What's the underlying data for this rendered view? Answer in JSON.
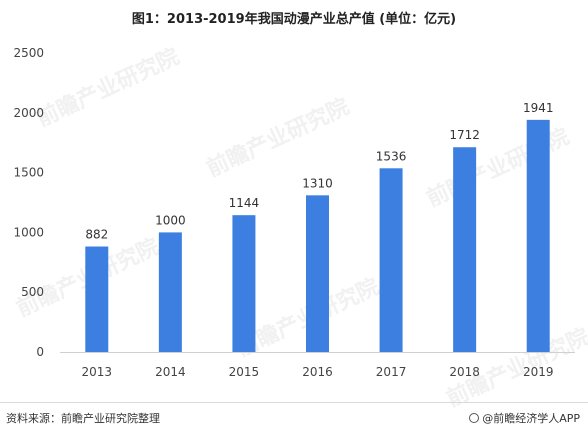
{
  "chart_data": {
    "type": "bar",
    "title": "图1：2013-2019年我国动漫产业总产值 (单位：亿元)",
    "categories": [
      "2013",
      "2014",
      "2015",
      "2016",
      "2017",
      "2018",
      "2019"
    ],
    "values": [
      882,
      1000,
      1144,
      1310,
      1536,
      1712,
      1941
    ],
    "yticks": [
      "0",
      "500",
      "1000",
      "1500",
      "2000",
      "2500"
    ],
    "ylim": [
      0,
      2500
    ],
    "xlabel": "",
    "ylabel": "",
    "grid": false,
    "bar_color": "#3c7fe0"
  },
  "footer": {
    "source": "资料来源：前瞻产业研究院整理",
    "brand": "@前瞻经济学人APP",
    "brand_icon": "brand-logo-icon"
  },
  "watermark": "前瞻产业研究院"
}
